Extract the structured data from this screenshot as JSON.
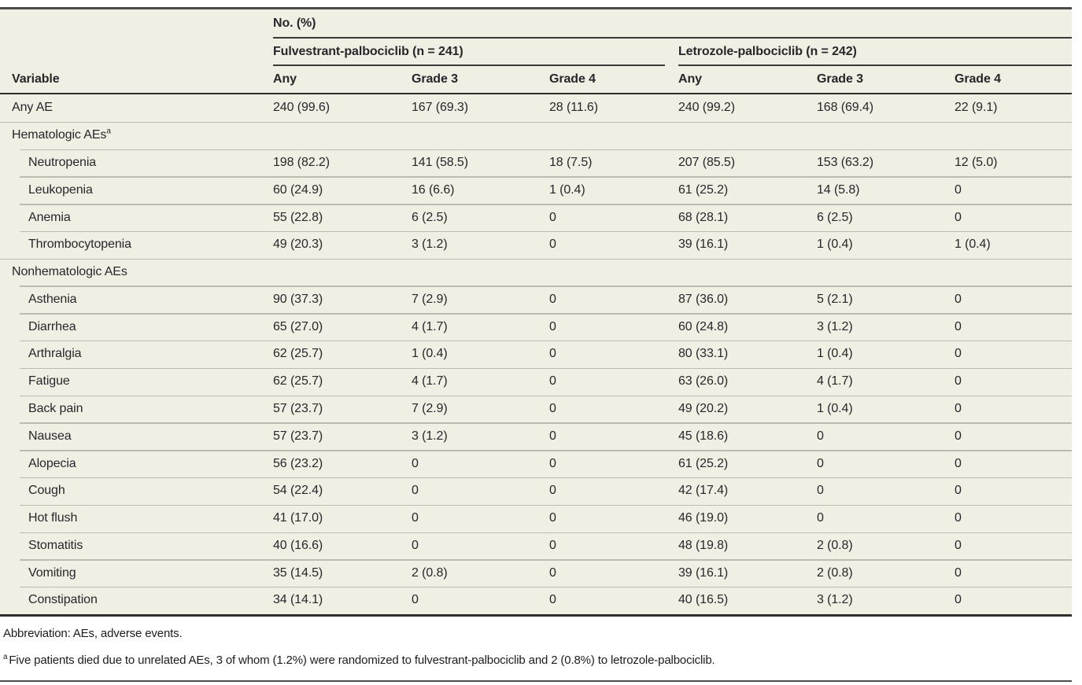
{
  "table": {
    "units_header": "No. (%)",
    "variable_header": "Variable",
    "groups": [
      {
        "label": "Fulvestrant-palbociclib (n = 241)",
        "subcols": [
          "Any",
          "Grade 3",
          "Grade 4"
        ]
      },
      {
        "label": "Letrozole-palbociclib (n = 242)",
        "subcols": [
          "Any",
          "Grade 3",
          "Grade 4"
        ]
      }
    ],
    "rows": [
      {
        "label": "Any AE",
        "section": false,
        "indent": false,
        "values": [
          "240 (99.6)",
          "167 (69.3)",
          "28 (11.6)",
          "240 (99.2)",
          "168 (69.4)",
          "22 (9.1)"
        ]
      },
      {
        "label": "Hematologic AEs",
        "sup": "a",
        "section": true,
        "indent": false,
        "values": [
          "",
          "",
          "",
          "",
          "",
          ""
        ]
      },
      {
        "label": "Neutropenia",
        "section": false,
        "indent": true,
        "values": [
          "198 (82.2)",
          "141 (58.5)",
          "18 (7.5)",
          "207 (85.5)",
          "153 (63.2)",
          "12 (5.0)"
        ]
      },
      {
        "label": "Leukopenia",
        "section": false,
        "indent": true,
        "values": [
          "60 (24.9)",
          "16 (6.6)",
          "1 (0.4)",
          "61 (25.2)",
          "14 (5.8)",
          "0"
        ]
      },
      {
        "label": "Anemia",
        "section": false,
        "indent": true,
        "values": [
          "55 (22.8)",
          "6 (2.5)",
          "0",
          "68 (28.1)",
          "6 (2.5)",
          "0"
        ]
      },
      {
        "label": "Thrombocytopenia",
        "section": false,
        "indent": true,
        "values": [
          "49 (20.3)",
          "3 (1.2)",
          "0",
          "39 (16.1)",
          "1 (0.4)",
          "1 (0.4)"
        ]
      },
      {
        "label": "Nonhematologic AEs",
        "section": true,
        "indent": false,
        "values": [
          "",
          "",
          "",
          "",
          "",
          ""
        ]
      },
      {
        "label": "Asthenia",
        "section": false,
        "indent": true,
        "values": [
          "90 (37.3)",
          "7 (2.9)",
          "0",
          "87 (36.0)",
          "5 (2.1)",
          "0"
        ]
      },
      {
        "label": "Diarrhea",
        "section": false,
        "indent": true,
        "values": [
          "65 (27.0)",
          "4 (1.7)",
          "0",
          "60 (24.8)",
          "3 (1.2)",
          "0"
        ]
      },
      {
        "label": "Arthralgia",
        "section": false,
        "indent": true,
        "values": [
          "62 (25.7)",
          "1 (0.4)",
          "0",
          "80 (33.1)",
          "1 (0.4)",
          "0"
        ]
      },
      {
        "label": "Fatigue",
        "section": false,
        "indent": true,
        "values": [
          "62 (25.7)",
          "4 (1.7)",
          "0",
          "63 (26.0)",
          "4 (1.7)",
          "0"
        ]
      },
      {
        "label": "Back pain",
        "section": false,
        "indent": true,
        "values": [
          "57 (23.7)",
          "7 (2.9)",
          "0",
          "49 (20.2)",
          "1 (0.4)",
          "0"
        ]
      },
      {
        "label": "Nausea",
        "section": false,
        "indent": true,
        "values": [
          "57 (23.7)",
          "3 (1.2)",
          "0",
          "45 (18.6)",
          "0",
          "0"
        ]
      },
      {
        "label": "Alopecia",
        "section": false,
        "indent": true,
        "values": [
          "56 (23.2)",
          "0",
          "0",
          "61 (25.2)",
          "0",
          "0"
        ]
      },
      {
        "label": "Cough",
        "section": false,
        "indent": true,
        "values": [
          "54 (22.4)",
          "0",
          "0",
          "42 (17.4)",
          "0",
          "0"
        ]
      },
      {
        "label": "Hot flush",
        "section": false,
        "indent": true,
        "values": [
          "41 (17.0)",
          "0",
          "0",
          "46 (19.0)",
          "0",
          "0"
        ]
      },
      {
        "label": "Stomatitis",
        "section": false,
        "indent": true,
        "values": [
          "40 (16.6)",
          "0",
          "0",
          "48 (19.8)",
          "2 (0.8)",
          "0"
        ]
      },
      {
        "label": "Vomiting",
        "section": false,
        "indent": true,
        "values": [
          "35 (14.5)",
          "2 (0.8)",
          "0",
          "39 (16.1)",
          "2 (0.8)",
          "0"
        ]
      },
      {
        "label": "Constipation",
        "section": false,
        "indent": true,
        "values": [
          "34 (14.1)",
          "0",
          "0",
          "40 (16.5)",
          "3 (1.2)",
          "0"
        ]
      }
    ]
  },
  "footer": {
    "abbreviation": "Abbreviation: AEs, adverse events.",
    "footnote_marker": "a",
    "footnote": "Five patients died due to unrelated AEs, 3 of whom (1.2%) were randomized to fulvestrant-palbociclib and 2 (0.8%) to letrozole-palbociclib."
  },
  "colors": {
    "table_background": "#f0efe4",
    "row_separator": "#bcbbb1",
    "header_rule": "#3a3a38",
    "heavy_rule": "#2d2d2b",
    "outer_rule": "#4c4b47",
    "text": "#27262b"
  }
}
